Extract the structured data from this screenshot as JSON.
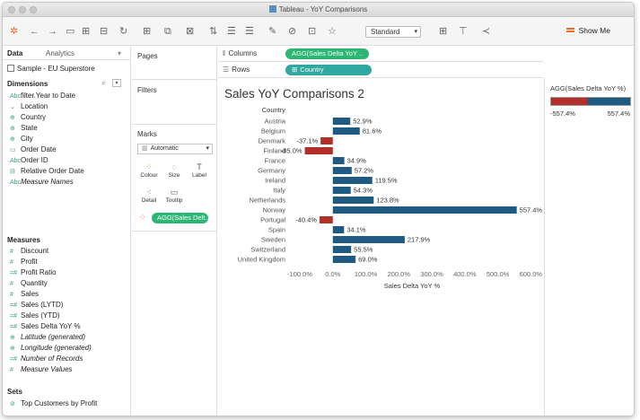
{
  "window": {
    "title": "Tableau - YoY Comparisons"
  },
  "toolbar": {
    "fit_select": "Standard",
    "show_me": "Show Me"
  },
  "data_pane": {
    "tabs": [
      "Data",
      "Analytics"
    ],
    "source": "Sample - EU Superstore",
    "dimensions_header": "Dimensions",
    "dimensions": [
      {
        "icon": "Abc",
        "label": "filter.Year to Date",
        "italic": false
      },
      {
        "icon": "⌄",
        "label": "Location",
        "italic": false
      },
      {
        "icon": "⊕",
        "label": "Country",
        "italic": false
      },
      {
        "icon": "⊕",
        "label": "State",
        "italic": false
      },
      {
        "icon": "⊕",
        "label": "City",
        "italic": false
      },
      {
        "icon": "▭",
        "label": "Order Date",
        "italic": false
      },
      {
        "icon": "Abc",
        "label": "Order ID",
        "italic": false
      },
      {
        "icon": "⊟",
        "label": "Relative Order Date",
        "italic": false
      },
      {
        "icon": "Abc",
        "label": "Measure Names",
        "italic": true
      }
    ],
    "measures_header": "Measures",
    "measures": [
      {
        "icon": "#",
        "label": "Discount",
        "italic": false
      },
      {
        "icon": "#",
        "label": "Profit",
        "italic": false
      },
      {
        "icon": "=#",
        "label": "Profit Ratio",
        "italic": false
      },
      {
        "icon": "#",
        "label": "Quantity",
        "italic": false
      },
      {
        "icon": "#",
        "label": "Sales",
        "italic": false
      },
      {
        "icon": "=#",
        "label": "Sales (LYTD)",
        "italic": false
      },
      {
        "icon": "=#",
        "label": "Sales (YTD)",
        "italic": false
      },
      {
        "icon": "=#",
        "label": "Sales Delta YoY %",
        "italic": false
      },
      {
        "icon": "⊕",
        "label": "Latitude (generated)",
        "italic": true
      },
      {
        "icon": "⊕",
        "label": "Longitude (generated)",
        "italic": true
      },
      {
        "icon": "=#",
        "label": "Number of Records",
        "italic": true
      },
      {
        "icon": "#",
        "label": "Measure Values",
        "italic": true
      }
    ],
    "sets_header": "Sets",
    "sets": [
      {
        "icon": "⊘",
        "label": "Top Customers by Profit",
        "italic": false
      }
    ]
  },
  "cards": {
    "pages": "Pages",
    "filters": "Filters",
    "marks": "Marks",
    "mark_type": "Automatic",
    "mark_buttons": [
      {
        "icon": "⁘",
        "label": "Colour"
      },
      {
        "icon": "◌",
        "label": "Size"
      },
      {
        "icon": "T",
        "label": "Label"
      },
      {
        "icon": "⁖",
        "label": "Detail"
      },
      {
        "icon": "▭",
        "label": "Tooltip"
      }
    ],
    "color_pill": "AGG(Sales Delt..."
  },
  "shelves": {
    "columns_label": "Columns",
    "columns_pill": "AGG(Sales Delta YoY ..",
    "rows_label": "Rows",
    "rows_pill": "Country"
  },
  "legend": {
    "title": "AGG(Sales Delta YoY %)",
    "min": "-557.4%",
    "max": "557.4%"
  },
  "colors": {
    "positive": "#1f5a83",
    "negative": "#b3302a",
    "pill_green": "#2bb673",
    "pill_teal": "#2fa8a0"
  },
  "chart_data": {
    "type": "bar",
    "orientation": "horizontal",
    "title": "Sales YoY Comparisons 2",
    "row_header": "Country",
    "xlabel": "Sales Delta YoY %",
    "categories": [
      "Austria",
      "Belgium",
      "Denmark",
      "Finland",
      "France",
      "Germany",
      "Ireland",
      "Italy",
      "Netherlands",
      "Norway",
      "Portugal",
      "Spain",
      "Sweden",
      "Switzerland",
      "United Kingdom"
    ],
    "values": [
      52.9,
      81.6,
      -37.1,
      -85.0,
      34.9,
      57.2,
      119.5,
      54.3,
      123.8,
      557.4,
      -40.4,
      34.1,
      217.9,
      55.5,
      69.0
    ],
    "labels": [
      "52.9%",
      "81.6%",
      "-37.1%",
      "-85.0%",
      "34.9%",
      "57.2%",
      "119.5%",
      "54.3%",
      "123.8%",
      "557.4%",
      "-40.4%",
      "34.1%",
      "217.9%",
      "55.5%",
      "69.0%"
    ],
    "xticks": [
      -100,
      0,
      100,
      200,
      300,
      400,
      500,
      600
    ],
    "xtick_labels": [
      "-100.0%",
      "0.0%",
      "100.0%",
      "200.0%",
      "300.0%",
      "400.0%",
      "500.0%",
      "600.0%"
    ],
    "xlim": [
      -130,
      610
    ],
    "grid": false
  }
}
